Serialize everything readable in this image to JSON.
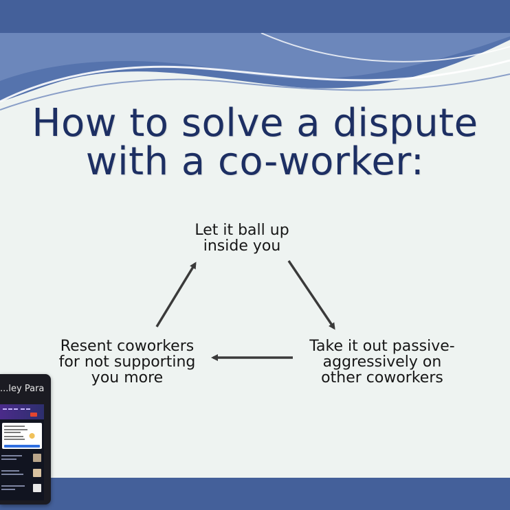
{
  "slide": {
    "title_lines": [
      "How to solve a dispute",
      "with a co-worker:"
    ],
    "cycle": {
      "top": [
        "Let it ball up",
        "inside you"
      ],
      "right": [
        "Take it out passive-",
        "aggressively on",
        "other coworkers"
      ],
      "left": [
        "Resent coworkers",
        "for not supporting",
        "you more"
      ]
    }
  },
  "thumbnail": {
    "title": "ley Para..."
  },
  "colors": {
    "frame": "#44609a",
    "slide_bg": "#eef3f1",
    "title": "#1d2f63",
    "arrow": "#3a3a3a"
  }
}
